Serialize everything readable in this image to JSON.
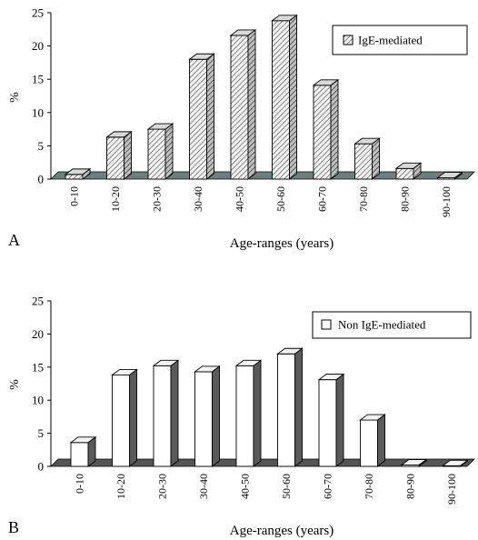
{
  "chart_data": [
    {
      "type": "bar",
      "panel_label": "A",
      "categories": [
        "0-10",
        "10-20",
        "20-30",
        "30-40",
        "40-50",
        "50-60",
        "60-70",
        "70-80",
        "80-90",
        "90-100"
      ],
      "series": [
        {
          "name": "IgE-mediated",
          "values": [
            0.7,
            6.3,
            7.5,
            18.0,
            21.6,
            23.8,
            14.1,
            5.3,
            1.6,
            0.2
          ]
        }
      ],
      "xlabel": "Age-ranges (years)",
      "ylabel": "%",
      "yticks": [
        "0",
        "5",
        "10",
        "15",
        "20",
        "25"
      ],
      "ylim": [
        0,
        25
      ],
      "grid": false,
      "legend_position": "top-right",
      "fill": "hatched",
      "floor_color": "#6e7f82"
    },
    {
      "type": "bar",
      "panel_label": "B",
      "categories": [
        "0-10",
        "10-20",
        "20-30",
        "30-40",
        "40-50",
        "50-60",
        "60-70",
        "70-80",
        "80-90",
        "90-100"
      ],
      "series": [
        {
          "name": "Non IgE-mediated",
          "values": [
            3.6,
            13.8,
            15.2,
            14.3,
            15.2,
            17.0,
            13.1,
            7.0,
            0.2,
            0.1
          ]
        }
      ],
      "xlabel": "Age-ranges (years)",
      "ylabel": "%",
      "yticks": [
        "0",
        "5",
        "10",
        "15",
        "20",
        "25"
      ],
      "ylim": [
        0,
        25
      ],
      "grid": false,
      "legend_position": "top-right",
      "fill": "white",
      "floor_color": "#555555"
    }
  ]
}
